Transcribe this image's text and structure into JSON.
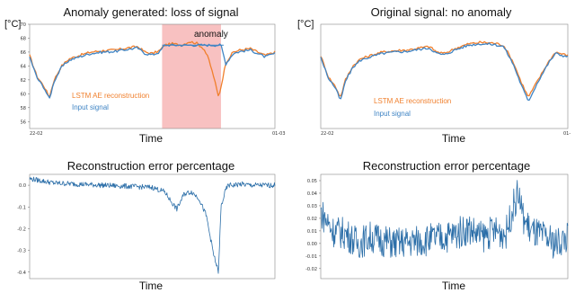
{
  "colors": {
    "reconstruction": "#f07f2c",
    "input": "#3f84c4",
    "error": "#2b6ea8",
    "anomaly_band": "#f7b6b6"
  },
  "chart_data": [
    {
      "type": "line",
      "title": "Anomaly generated: loss of signal",
      "unit_label": "[°C]",
      "xlabel": "Time",
      "x_ticks": [
        "22-02",
        "01-03"
      ],
      "ylim": [
        55,
        70
      ],
      "y_ticks": [
        56,
        58,
        60,
        62,
        64,
        66,
        68,
        70
      ],
      "annotation": "anomaly",
      "anomaly_span": [
        0.54,
        0.78
      ],
      "series": [
        {
          "name": "LSTM AE reconstruction",
          "color_key": "reconstruction",
          "x": [
            0.0,
            0.03,
            0.06,
            0.08,
            0.1,
            0.13,
            0.16,
            0.2,
            0.25,
            0.3,
            0.35,
            0.4,
            0.44,
            0.47,
            0.5,
            0.53,
            0.55,
            0.58,
            0.62,
            0.65,
            0.68,
            0.71,
            0.73,
            0.75,
            0.77,
            0.78,
            0.8,
            0.83,
            0.86,
            0.9,
            0.93,
            0.96,
            1.0
          ],
          "values": [
            65.5,
            62.5,
            61.0,
            59.5,
            62.0,
            64.0,
            65.0,
            65.5,
            66.0,
            66.2,
            66.3,
            66.6,
            66.8,
            66.0,
            65.8,
            66.2,
            67.0,
            67.2,
            67.0,
            67.5,
            67.3,
            66.5,
            65.0,
            62.5,
            59.5,
            61.0,
            64.5,
            66.0,
            66.3,
            66.5,
            66.0,
            65.5,
            66.0
          ]
        },
        {
          "name": "Input signal",
          "color_key": "input",
          "x": [
            0.0,
            0.03,
            0.06,
            0.08,
            0.1,
            0.13,
            0.16,
            0.2,
            0.25,
            0.3,
            0.35,
            0.4,
            0.44,
            0.47,
            0.5,
            0.53,
            0.55,
            0.78,
            0.8,
            0.83,
            0.86,
            0.9,
            0.93,
            0.96,
            1.0
          ],
          "values": [
            65.3,
            62.3,
            60.8,
            59.2,
            61.8,
            63.8,
            64.8,
            65.3,
            65.8,
            66.0,
            66.1,
            66.4,
            66.6,
            65.8,
            65.6,
            66.0,
            67.0,
            67.0,
            64.3,
            65.8,
            66.1,
            66.3,
            65.8,
            65.3,
            65.8
          ]
        }
      ]
    },
    {
      "type": "line",
      "title": "Original signal: no anomaly",
      "unit_label": "[°C]",
      "xlabel": "Time",
      "x_ticks": [
        "22-02",
        "01-"
      ],
      "ylim": [
        55,
        70
      ],
      "y_ticks": [],
      "series": [
        {
          "name": "LSTM AE reconstruction",
          "color_key": "reconstruction",
          "x": [
            0.0,
            0.03,
            0.06,
            0.08,
            0.1,
            0.13,
            0.16,
            0.2,
            0.25,
            0.3,
            0.35,
            0.4,
            0.44,
            0.47,
            0.5,
            0.55,
            0.6,
            0.65,
            0.7,
            0.74,
            0.78,
            0.81,
            0.84,
            0.88,
            0.92,
            0.95,
            1.0
          ],
          "values": [
            65.5,
            62.5,
            61.0,
            59.5,
            62.0,
            64.0,
            65.0,
            65.5,
            66.0,
            66.2,
            66.3,
            66.6,
            66.8,
            66.0,
            65.8,
            66.6,
            67.2,
            67.4,
            67.3,
            67.0,
            64.5,
            61.8,
            59.5,
            62.0,
            64.5,
            66.0,
            65.5
          ]
        },
        {
          "name": "Input signal",
          "color_key": "input",
          "x": [
            0.0,
            0.03,
            0.06,
            0.08,
            0.1,
            0.13,
            0.16,
            0.2,
            0.25,
            0.3,
            0.35,
            0.4,
            0.44,
            0.47,
            0.5,
            0.55,
            0.6,
            0.65,
            0.7,
            0.74,
            0.78,
            0.81,
            0.84,
            0.88,
            0.92,
            0.95,
            1.0
          ],
          "values": [
            65.3,
            62.3,
            60.8,
            59.0,
            61.8,
            63.8,
            64.8,
            65.3,
            65.8,
            66.0,
            66.1,
            66.4,
            66.6,
            65.8,
            65.6,
            66.4,
            67.0,
            67.2,
            67.1,
            66.8,
            64.2,
            61.4,
            58.9,
            61.8,
            64.3,
            65.8,
            65.3
          ]
        }
      ]
    },
    {
      "type": "line",
      "title": "Reconstruction error percentage",
      "xlabel": "Time",
      "ylim": [
        -0.43,
        0.05
      ],
      "y_ticks": [
        0.0,
        -0.1,
        -0.2,
        -0.3,
        -0.4
      ],
      "y_tick_labels": [
        "0.0",
        "-0.1",
        "-0.2",
        "-0.3",
        "-0.4"
      ],
      "series": [
        {
          "color_key": "error",
          "x": [
            0.0,
            0.1,
            0.2,
            0.3,
            0.4,
            0.5,
            0.55,
            0.58,
            0.6,
            0.63,
            0.66,
            0.69,
            0.72,
            0.75,
            0.77,
            0.78,
            0.8,
            0.81,
            0.83,
            0.86,
            0.9,
            0.95,
            1.0
          ],
          "values": [
            0.03,
            0.01,
            0.005,
            0.0,
            -0.005,
            -0.01,
            -0.03,
            -0.08,
            -0.11,
            -0.04,
            -0.03,
            -0.06,
            -0.14,
            -0.32,
            -0.4,
            -0.1,
            -0.02,
            0.0,
            0.0,
            0.005,
            0.0,
            0.0,
            0.0
          ],
          "noise": 0.012
        }
      ]
    },
    {
      "type": "line",
      "title": "Reconstruction error percentage",
      "xlabel": "Time",
      "ylim": [
        -0.028,
        0.055
      ],
      "y_ticks": [
        0.05,
        0.04,
        0.03,
        0.02,
        0.01,
        0.0,
        -0.01,
        -0.02
      ],
      "y_tick_labels": [
        "0.05",
        "0.04",
        "0.03",
        "0.02",
        "0.01",
        "0.00",
        "-0.01",
        "-0.02"
      ],
      "series": [
        {
          "color_key": "error",
          "x": [
            0.0,
            0.05,
            0.1,
            0.15,
            0.2,
            0.3,
            0.4,
            0.5,
            0.55,
            0.6,
            0.65,
            0.7,
            0.75,
            0.78,
            0.8,
            0.82,
            0.85,
            0.9,
            0.95,
            1.0
          ],
          "values": [
            0.025,
            0.01,
            0.008,
            0.0,
            0.005,
            0.0,
            0.002,
            0.005,
            0.008,
            0.012,
            0.005,
            0.01,
            0.008,
            0.03,
            0.04,
            0.02,
            0.01,
            0.005,
            0.0,
            0.005
          ],
          "noise": 0.013
        }
      ]
    }
  ]
}
